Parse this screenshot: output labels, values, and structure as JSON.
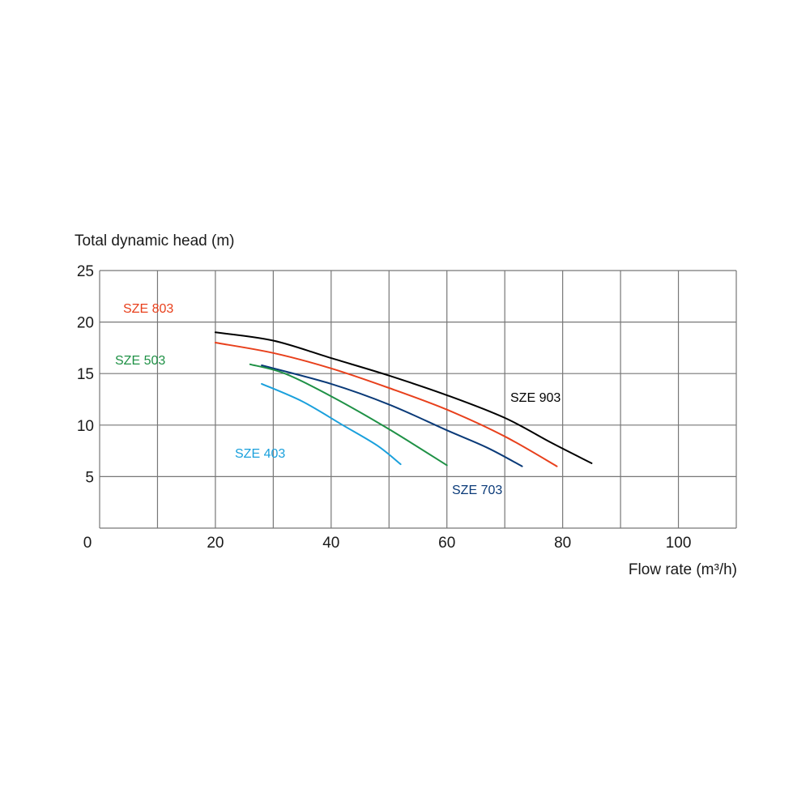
{
  "chart_data": {
    "type": "line",
    "title": "",
    "ylabel": "Total dynamic head (m)",
    "xlabel": "Flow rate (m³/h)",
    "xlim": [
      0,
      110
    ],
    "ylim": [
      0,
      25
    ],
    "x_ticks": [
      0,
      20,
      40,
      60,
      80,
      100
    ],
    "y_ticks": [
      5,
      10,
      15,
      20,
      25
    ],
    "grid": true,
    "legend": "inline labels",
    "series": [
      {
        "name": "SZE 903",
        "color": "#000000",
        "points": [
          [
            20,
            19.0
          ],
          [
            30,
            18.2
          ],
          [
            40,
            16.5
          ],
          [
            50,
            14.8
          ],
          [
            60,
            12.9
          ],
          [
            70,
            10.7
          ],
          [
            78,
            8.3
          ],
          [
            85,
            6.3
          ]
        ]
      },
      {
        "name": "SZE 803",
        "color": "#e8401c",
        "points": [
          [
            20,
            18.0
          ],
          [
            30,
            17.0
          ],
          [
            40,
            15.5
          ],
          [
            50,
            13.6
          ],
          [
            60,
            11.5
          ],
          [
            70,
            8.9
          ],
          [
            79,
            6.0
          ]
        ]
      },
      {
        "name": "SZE 703",
        "color": "#0a3a78",
        "points": [
          [
            28,
            15.8
          ],
          [
            40,
            14.0
          ],
          [
            50,
            12.0
          ],
          [
            60,
            9.5
          ],
          [
            67,
            7.8
          ],
          [
            73,
            6.0
          ]
        ]
      },
      {
        "name": "SZE 503",
        "color": "#1f9146",
        "points": [
          [
            26,
            15.9
          ],
          [
            32,
            15.0
          ],
          [
            40,
            12.8
          ],
          [
            50,
            9.6
          ],
          [
            60,
            6.1
          ]
        ]
      },
      {
        "name": "SZE 403",
        "color": "#1aa0dc",
        "points": [
          [
            28,
            14.0
          ],
          [
            35,
            12.3
          ],
          [
            42,
            10.0
          ],
          [
            48,
            8.0
          ],
          [
            52,
            6.2
          ]
        ]
      }
    ]
  }
}
